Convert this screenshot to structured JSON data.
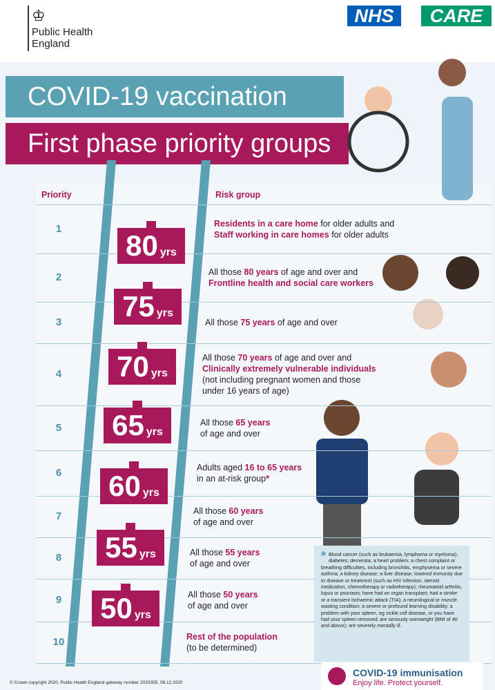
{
  "header": {
    "org_lines": [
      "Public Health",
      "England"
    ],
    "nhs": "NHS",
    "care": "CARE"
  },
  "title": "COVID-19 vaccination",
  "subtitle": "First phase priority groups",
  "table": {
    "headers": [
      "Priority",
      "Risk group"
    ],
    "sign_unit": "yrs",
    "rows": [
      {
        "priority": "1",
        "sign": 80,
        "risk": [
          [
            {
              "text": "Residents in a care home",
              "highlight": true
            },
            {
              "text": " for older adults and"
            }
          ],
          [
            {
              "text": "Staff working in care homes",
              "highlight": true
            },
            {
              "text": " for older adults"
            }
          ]
        ]
      },
      {
        "priority": "2",
        "sign": 75,
        "risk": [
          [
            {
              "text": "All those "
            },
            {
              "text": "80 years",
              "highlight": true
            },
            {
              "text": " of age and over and"
            }
          ],
          [
            {
              "text": "Frontline health and social care workers",
              "highlight": true
            }
          ]
        ]
      },
      {
        "priority": "3",
        "sign": 70,
        "risk": [
          [
            {
              "text": "All those "
            },
            {
              "text": "75 years",
              "highlight": true
            },
            {
              "text": " of age and over"
            }
          ]
        ]
      },
      {
        "priority": "4",
        "sign": 65,
        "risk": [
          [
            {
              "text": "All those "
            },
            {
              "text": "70 years",
              "highlight": true
            },
            {
              "text": " of age and over and"
            }
          ],
          [
            {
              "text": "Clinically extremely vulnerable individuals",
              "highlight": true
            }
          ],
          [
            {
              "text": "(not including pregnant women and those"
            }
          ],
          [
            {
              "text": "under 16 years of age)"
            }
          ]
        ]
      },
      {
        "priority": "5",
        "sign": 60,
        "risk": [
          [
            {
              "text": "All those "
            },
            {
              "text": "65 years",
              "highlight": true
            }
          ],
          [
            {
              "text": "of age and over"
            }
          ]
        ]
      },
      {
        "priority": "6",
        "sign": 55,
        "risk": [
          [
            {
              "text": "Adults aged "
            },
            {
              "text": "16 to 65 years",
              "highlight": true
            }
          ],
          [
            {
              "text": "in an at-risk group"
            },
            {
              "text": "*",
              "highlight": true
            }
          ]
        ]
      },
      {
        "priority": "7",
        "sign": 50,
        "risk": [
          [
            {
              "text": "All those "
            },
            {
              "text": "60 years",
              "highlight": true
            }
          ],
          [
            {
              "text": "of age and over"
            }
          ]
        ]
      },
      {
        "priority": "8",
        "risk": [
          [
            {
              "text": "All those "
            },
            {
              "text": "55 years",
              "highlight": true
            }
          ],
          [
            {
              "text": "of age and over"
            }
          ]
        ]
      },
      {
        "priority": "9",
        "risk": [
          [
            {
              "text": "All those "
            },
            {
              "text": "50 years",
              "highlight": true
            }
          ],
          [
            {
              "text": "of age and over"
            }
          ]
        ]
      },
      {
        "priority": "10",
        "risk": [
          [
            {
              "text": "Rest of the population",
              "highlight": true
            }
          ],
          [
            {
              "text": "(to be determined)"
            }
          ]
        ]
      }
    ]
  },
  "footnote": {
    "marker": "*",
    "text": "Blood cancer (such as leukaemia, lymphoma or myeloma); diabetes; dementia; a heart problem; a chest complaint or breathing difficulties, including bronchitis, emphysema or severe asthma; a kidney disease; a liver disease, lowered immunity due to disease or treatment (such as HIV infection, steroid medication, chemotherapy or radiotherapy); rheumatoid arthritis, lupus or psoriasis; have had an organ transplant; had a stroke or a transient ischaemic attack (TIA); a neurological or muscle wasting condition; a severe or profound learning disability; a problem with your spleen, eg sickle cell disease, or you have had your spleen removed; are seriously overweight (BMI of 40 and above); are severely mentally ill."
  },
  "footer": {
    "brand": "COVID-19 immunisation",
    "tagline": "Enjoy life. Protect yourself.",
    "copyright": "© Crown copyright 2020. Public Health England gateway number 2020355. 08.12.2020"
  }
}
